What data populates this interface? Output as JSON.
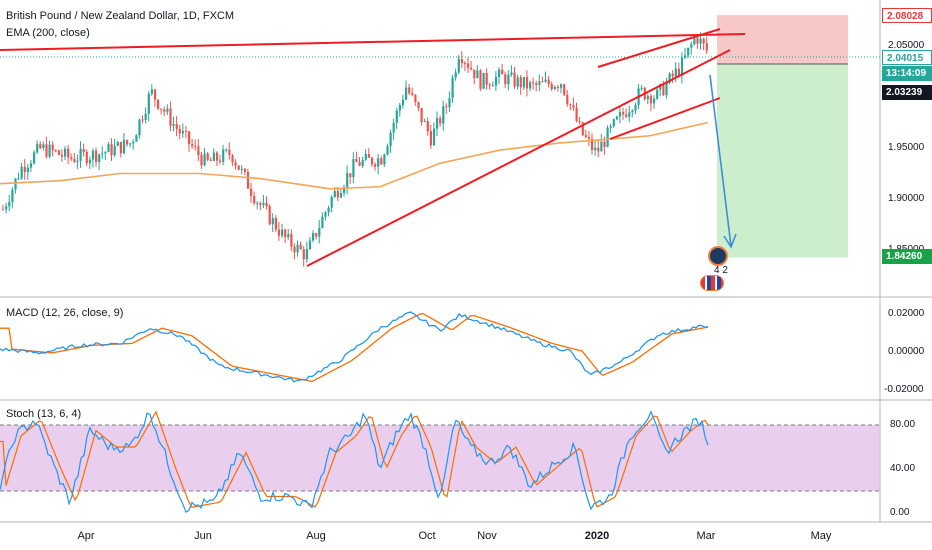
{
  "symbol_title": "British Pound / New Zealand Dollar, 1D, FXCM",
  "ema_label": "EMA (200, close)",
  "macd_label": "MACD (12, 26, close, 9)",
  "stoch_label": "Stoch (13, 6, 4)",
  "price_axis": [
    "2.05000",
    "1.95000",
    "1.90000",
    "1.85000"
  ],
  "macd_axis": [
    "0.02000",
    "0.00000",
    "-0.02000"
  ],
  "stoch_axis": [
    "80.00",
    "40.00",
    "0.00"
  ],
  "price_tags": {
    "stop": "2.08028",
    "current": "2.04015",
    "countdown": "13:14:09",
    "ema_value": "2.03239",
    "target": "1.84260"
  },
  "months": [
    "Apr",
    "Jun",
    "Aug",
    "Oct",
    "Nov",
    "2020",
    "Mar",
    "May"
  ],
  "badge_count": "4 2",
  "colors": {
    "up": "#26a69a",
    "down": "#ef5350",
    "ema": "#f5a55a",
    "trendline": "#ee1c24",
    "macd": "#2196f3",
    "signal": "#ff6d00",
    "stoch_fill": "#e1bee7",
    "stop_zone": "#f8c8c8",
    "target_zone": "#cdeecd",
    "arrow": "#3d8fd9"
  },
  "chart_data": [
    {
      "type": "candlestick",
      "title": "British Pound / New Zealand Dollar, 1D, FXCM",
      "indicator": "EMA (200, close)",
      "x_axis_ticks": [
        "Apr",
        "Jun",
        "Aug",
        "Oct",
        "Nov",
        "2020",
        "Mar",
        "May"
      ],
      "y_axis_ticks": [
        2.05,
        1.95,
        1.9,
        1.85
      ],
      "approx_close_path": [
        {
          "x": "Mar",
          "y": 1.88
        },
        {
          "x": "Apr",
          "y": 1.92
        },
        {
          "x": "May",
          "y": 1.99
        },
        {
          "x": "Jun",
          "y": 1.94
        },
        {
          "x": "Jul",
          "y": 1.9
        },
        {
          "x": "Aug",
          "y": 1.85
        },
        {
          "x": "Sep",
          "y": 1.96
        },
        {
          "x": "Oct",
          "y": 2.04
        },
        {
          "x": "Nov",
          "y": 2.02
        },
        {
          "x": "Dec",
          "y": 1.96
        },
        {
          "x": "2020",
          "y": 1.98
        },
        {
          "x": "Feb",
          "y": 2.03
        },
        {
          "x": "Mar",
          "y": 2.04
        }
      ],
      "trade_levels": {
        "stop": 2.08028,
        "entry": 2.04015,
        "target": 1.8426,
        "ema": 2.03239
      }
    },
    {
      "type": "line",
      "title": "MACD (12, 26, close, 9)",
      "y_axis_ticks": [
        0.02,
        0.0,
        -0.02
      ],
      "series": [
        {
          "name": "MACD"
        },
        {
          "name": "Signal"
        }
      ]
    },
    {
      "type": "line",
      "title": "Stoch (13, 6, 4)",
      "y_axis_ticks": [
        80,
        40,
        0
      ],
      "bands": [
        80,
        20
      ],
      "series": [
        {
          "name": "%K"
        },
        {
          "name": "%D"
        }
      ]
    }
  ]
}
